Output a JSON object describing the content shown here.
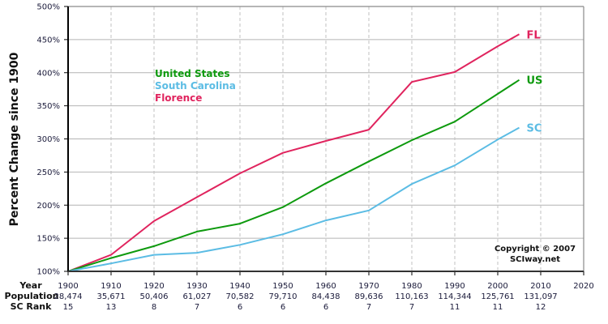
{
  "chart_data": {
    "type": "line",
    "title": "",
    "xlabel": "Year",
    "ylabel": "Percent Change since 1900",
    "ylim": [
      100,
      500
    ],
    "xlim": [
      1900,
      2020
    ],
    "y_ticks": [
      "100%",
      "150%",
      "200%",
      "250%",
      "300%",
      "350%",
      "400%",
      "450%",
      "500%"
    ],
    "x_ticks": [
      "1900",
      "1910",
      "1920",
      "1930",
      "1940",
      "1950",
      "1960",
      "1970",
      "1980",
      "1990",
      "2000",
      "2010",
      "2020"
    ],
    "grid": {
      "horizontal": "solid",
      "vertical": "dashed"
    },
    "legend": {
      "position": "upper-left (inside plot)",
      "entries": [
        "United States",
        "South Carolina",
        "Florence"
      ]
    },
    "x": [
      1900,
      1910,
      1920,
      1930,
      1940,
      1950,
      1960,
      1970,
      1980,
      1990,
      2000,
      2005
    ],
    "series": [
      {
        "name": "Florence",
        "short": "FL",
        "color": "#e0245e",
        "values": [
          100,
          125,
          176,
          212,
          248,
          279,
          297,
          314,
          386,
          401,
          440,
          458
        ]
      },
      {
        "name": "United States",
        "short": "US",
        "color": "#0e9a0e",
        "values": [
          100,
          120,
          138,
          160,
          172,
          197,
          233,
          266,
          298,
          326,
          368,
          389
        ]
      },
      {
        "name": "South Carolina",
        "short": "SC",
        "color": "#5bbce4",
        "values": [
          100,
          112,
          125,
          128,
          140,
          156,
          177,
          192,
          232,
          260,
          299,
          317
        ]
      }
    ],
    "table": {
      "row_headers": [
        "Year",
        "Population",
        "SC Rank"
      ],
      "years": [
        "1900",
        "1910",
        "1920",
        "1930",
        "1940",
        "1950",
        "1960",
        "1970",
        "1980",
        "1990",
        "2000",
        "2010",
        "2020"
      ],
      "population": [
        "28,474",
        "35,671",
        "50,406",
        "61,027",
        "70,582",
        "79,710",
        "84,438",
        "89,636",
        "110,163",
        "114,344",
        "125,761",
        "131,097",
        ""
      ],
      "sc_rank": [
        "15",
        "13",
        "8",
        "7",
        "6",
        "6",
        "6",
        "7",
        "7",
        "11",
        "11",
        "12",
        ""
      ]
    },
    "annotations": [
      "Copyright © 2007",
      "SCIway.net"
    ]
  },
  "copyright": {
    "line1": "Copyright © 2007",
    "line2": "SCIway.net"
  }
}
